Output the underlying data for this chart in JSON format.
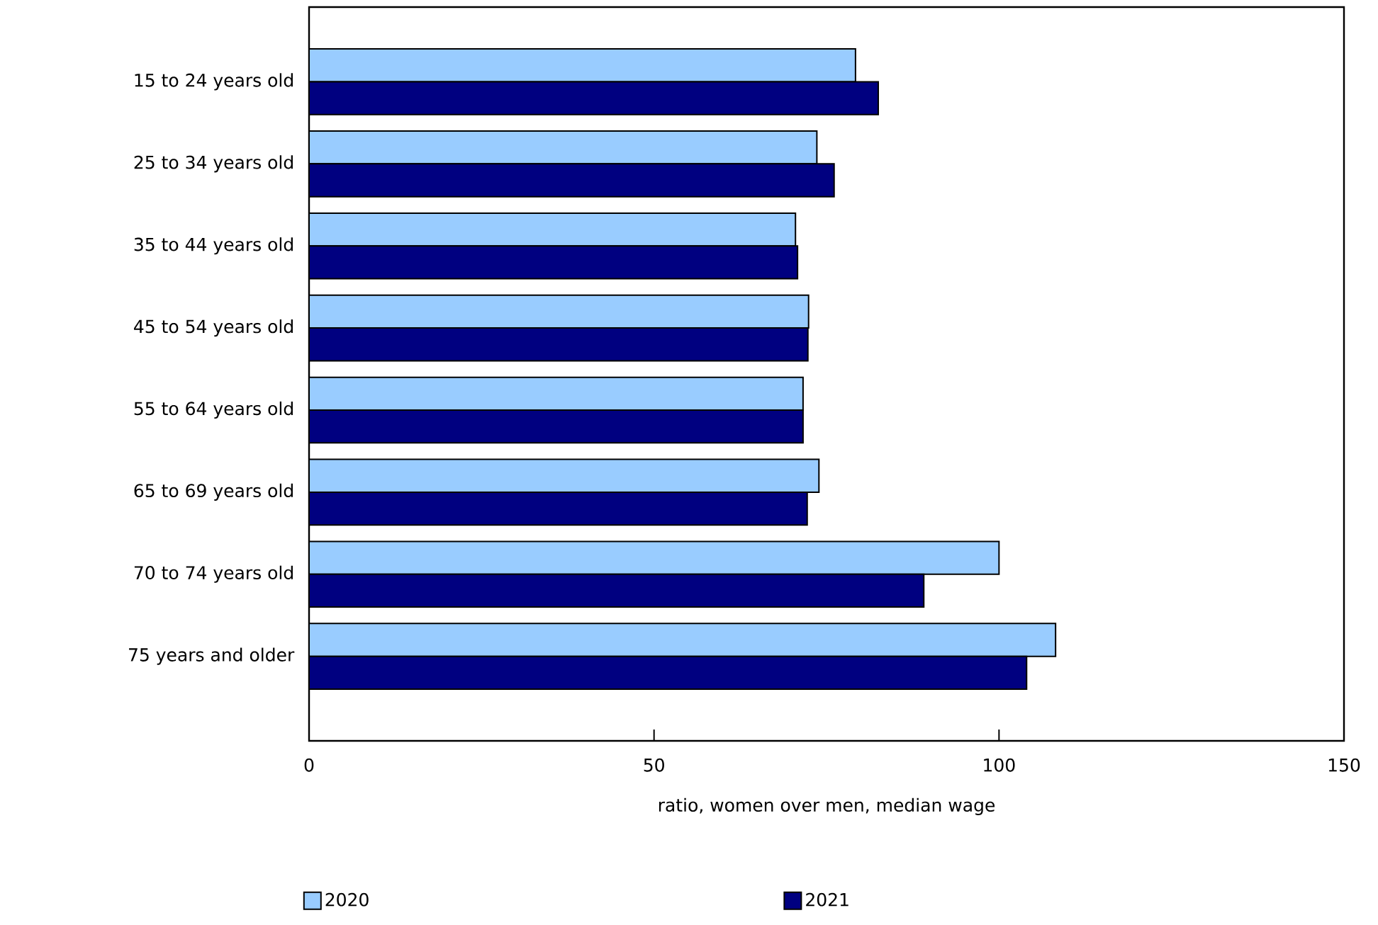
{
  "chart_data": {
    "type": "bar",
    "orientation": "horizontal",
    "xlabel": "ratio, women over men, median wage",
    "categories": [
      "15 to 24 years old",
      "25 to 34 years old",
      "35 to 44 years old",
      "45 to 54 years old",
      "55 to 64 years old",
      "65 to 69 years old",
      "70 to 74 years old",
      "75 years and older"
    ],
    "series": [
      {
        "name": "2020",
        "color": "#99ccff",
        "values": [
          79.2,
          73.6,
          70.5,
          72.4,
          71.6,
          73.9,
          100.0,
          108.2
        ]
      },
      {
        "name": "2021",
        "color": "#000080",
        "values": [
          82.5,
          76.1,
          70.8,
          72.3,
          71.6,
          72.2,
          89.1,
          104.0
        ]
      }
    ],
    "xlim": [
      0,
      150
    ],
    "xticks": [
      0,
      50,
      100,
      150
    ],
    "legend": "bottom"
  }
}
